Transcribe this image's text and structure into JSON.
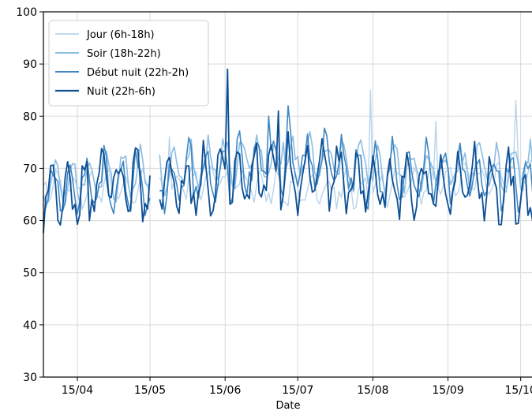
{
  "chart_data": {
    "type": "line",
    "xlabel": "Date",
    "ylabel": "",
    "ylim": [
      30,
      100
    ],
    "xlim": [
      "2018-04-01",
      "2018-10-20"
    ],
    "grid": true,
    "legend_position": "top-left",
    "y_ticks": [
      "30",
      "40",
      "50",
      "60",
      "70",
      "80",
      "90",
      "100"
    ],
    "x_ticks": [
      {
        "date": "2018-04-15",
        "label": "15/04"
      },
      {
        "date": "2018-05-15",
        "label": "15/05"
      },
      {
        "date": "2018-06-15",
        "label": "15/06"
      },
      {
        "date": "2018-07-15",
        "label": "15/07"
      },
      {
        "date": "2018-08-15",
        "label": "15/08"
      },
      {
        "date": "2018-09-15",
        "label": "15/09"
      },
      {
        "date": "2018-10-15",
        "label": "15/10"
      }
    ],
    "gap": [
      "2018-05-15",
      "2018-05-19"
    ],
    "series": [
      {
        "name": "Jour (6h-18h)",
        "color": "#b8d4ec",
        "width": 1.4,
        "anchors": [
          [
            "2018-04-01",
            67
          ],
          [
            "2018-04-20",
            66
          ],
          [
            "2018-05-10",
            66
          ],
          [
            "2018-05-25",
            67
          ],
          [
            "2018-06-15",
            68
          ],
          [
            "2018-07-05",
            66
          ],
          [
            "2018-07-25",
            66
          ],
          [
            "2018-08-10",
            66
          ],
          [
            "2018-09-01",
            67
          ],
          [
            "2018-09-25",
            68
          ],
          [
            "2018-10-20",
            70
          ]
        ],
        "amp": 2.5,
        "spikes": [
          [
            "2018-05-23",
            76
          ],
          [
            "2018-08-14",
            85
          ],
          [
            "2018-09-10",
            79
          ],
          [
            "2018-10-13",
            83
          ]
        ]
      },
      {
        "name": "Soir (18h-22h)",
        "color": "#8cbde2",
        "width": 1.6,
        "anchors": [
          [
            "2018-04-01",
            68
          ],
          [
            "2018-04-20",
            68
          ],
          [
            "2018-05-10",
            69
          ],
          [
            "2018-05-25",
            70
          ],
          [
            "2018-06-15",
            71
          ],
          [
            "2018-07-05",
            72
          ],
          [
            "2018-07-25",
            72
          ],
          [
            "2018-08-10",
            70
          ],
          [
            "2018-09-01",
            70
          ],
          [
            "2018-09-25",
            70
          ],
          [
            "2018-10-20",
            70
          ]
        ],
        "amp": 3.5,
        "spikes": [
          [
            "2018-06-21",
            75
          ],
          [
            "2018-07-09",
            75
          ]
        ]
      },
      {
        "name": "Début nuit (22h-2h)",
        "color": "#3f87c4",
        "width": 1.6,
        "anchors": [
          [
            "2018-04-01",
            67
          ],
          [
            "2018-04-20",
            67
          ],
          [
            "2018-05-10",
            68
          ],
          [
            "2018-05-25",
            68
          ],
          [
            "2018-06-15",
            70
          ],
          [
            "2018-07-05",
            71
          ],
          [
            "2018-07-25",
            71
          ],
          [
            "2018-08-10",
            69
          ],
          [
            "2018-09-01",
            69
          ],
          [
            "2018-09-25",
            69
          ],
          [
            "2018-10-20",
            68
          ]
        ],
        "amp": 4.5,
        "spikes": [
          [
            "2018-07-11",
            82
          ],
          [
            "2018-07-03",
            80
          ]
        ]
      },
      {
        "name": "Nuit (22h-6h)",
        "color": "#0d4f95",
        "width": 1.8,
        "anchors": [
          [
            "2018-04-01",
            65
          ],
          [
            "2018-04-20",
            66
          ],
          [
            "2018-05-10",
            67
          ],
          [
            "2018-05-25",
            66
          ],
          [
            "2018-06-15",
            68
          ],
          [
            "2018-07-05",
            69
          ],
          [
            "2018-07-25",
            69
          ],
          [
            "2018-08-10",
            67
          ],
          [
            "2018-09-01",
            67
          ],
          [
            "2018-09-25",
            67
          ],
          [
            "2018-10-20",
            66
          ]
        ],
        "amp": 5.0,
        "spikes": [
          [
            "2018-06-16",
            89
          ],
          [
            "2018-07-07",
            81
          ],
          [
            "2018-04-07",
            60
          ],
          [
            "2018-04-20",
            60
          ],
          [
            "2018-07-15",
            61
          ],
          [
            "2018-10-18",
            61
          ]
        ]
      }
    ]
  }
}
